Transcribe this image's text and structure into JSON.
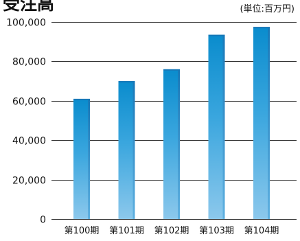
{
  "chart_data": {
    "type": "bar",
    "title": "受注高",
    "unit_label": "(単位:百万円)",
    "categories": [
      "第100期",
      "第101期",
      "第102期",
      "第103期",
      "第104期"
    ],
    "values": [
      61000,
      70000,
      76000,
      93500,
      97500
    ],
    "ylim": [
      0,
      100000
    ],
    "y_ticks": [
      0,
      20000,
      40000,
      60000,
      80000,
      100000
    ],
    "y_tick_labels": [
      "0",
      "20,000",
      "40,000",
      "60,000",
      "80,000",
      "100,000"
    ],
    "grid": true,
    "legend": "none",
    "colors": {
      "bar_light": "#8cc8ec",
      "bar_mid": "#3aa6de",
      "bar_dark": "#0a8ccd",
      "bar_side": "#1778b8",
      "grid": "#333333",
      "text": "#111111"
    }
  }
}
